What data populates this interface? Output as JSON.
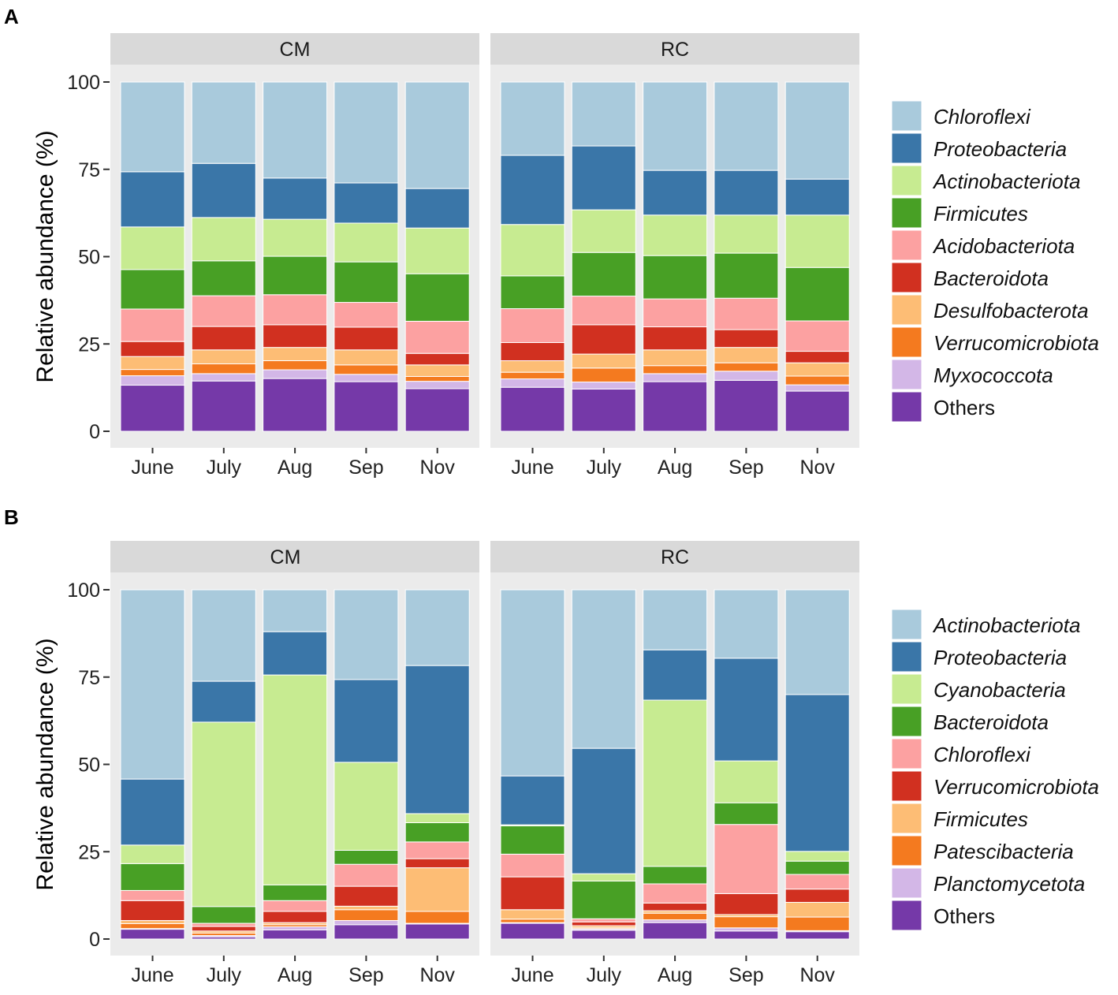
{
  "chart_data": [
    {
      "panel_label": "A",
      "type": "bar",
      "stacked": true,
      "ylabel": "Relative abundance (%)",
      "ylim": [
        0,
        100
      ],
      "yticks": [
        0,
        25,
        50,
        75,
        100
      ],
      "categories": [
        "June",
        "July",
        "Aug",
        "Sep",
        "Nov"
      ],
      "facets": [
        "CM",
        "RC"
      ],
      "legend_position": "right",
      "series": [
        {
          "name": "Chloroflexi",
          "color": "#a9cadc",
          "values": {
            "CM": [
              25.7,
              23.3,
              27.5,
              28.9,
              30.5
            ],
            "RC": [
              21.0,
              18.3,
              25.3,
              25.3,
              27.8
            ]
          }
        },
        {
          "name": "Proteobacteria",
          "color": "#3a76a8",
          "values": {
            "CM": [
              15.8,
              15.5,
              11.8,
              11.5,
              11.3
            ],
            "RC": [
              19.8,
              18.3,
              12.8,
              12.8,
              10.3
            ]
          }
        },
        {
          "name": "Actinobacteriota",
          "color": "#c7eb91",
          "values": {
            "CM": [
              12.2,
              12.4,
              10.6,
              11.1,
              13.1
            ],
            "RC": [
              14.7,
              12.2,
              11.6,
              10.9,
              15.0
            ]
          }
        },
        {
          "name": "Firmicutes",
          "color": "#48a025",
          "values": {
            "CM": [
              11.3,
              10.0,
              11.0,
              11.6,
              13.6
            ],
            "RC": [
              9.4,
              12.5,
              12.4,
              12.9,
              15.3
            ]
          }
        },
        {
          "name": "Acidobacteriota",
          "color": "#fca1a1",
          "values": {
            "CM": [
              9.3,
              8.8,
              8.6,
              7.1,
              9.2
            ],
            "RC": [
              9.7,
              8.2,
              8.0,
              9.0,
              8.7
            ]
          }
        },
        {
          "name": "Bacteroidota",
          "color": "#d13020",
          "values": {
            "CM": [
              4.3,
              6.7,
              6.5,
              6.5,
              3.3
            ],
            "RC": [
              5.2,
              8.4,
              6.6,
              5.1,
              3.3
            ]
          }
        },
        {
          "name": "Desulfobacterota",
          "color": "#fdbd75",
          "values": {
            "CM": [
              3.7,
              4.0,
              3.8,
              4.3,
              3.3
            ],
            "RC": [
              3.3,
              4.0,
              4.5,
              4.4,
              3.8
            ]
          }
        },
        {
          "name": "Verrucomicrobiota",
          "color": "#f47a1f",
          "values": {
            "CM": [
              1.8,
              2.8,
              2.6,
              2.7,
              1.4
            ],
            "RC": [
              1.9,
              4.0,
              2.3,
              2.4,
              2.5
            ]
          }
        },
        {
          "name": "Myxococcota",
          "color": "#d3b7e7",
          "values": {
            "CM": [
              2.7,
              2.1,
              2.5,
              2.1,
              2.1
            ],
            "RC": [
              2.4,
              2.0,
              2.3,
              2.6,
              1.8
            ]
          }
        },
        {
          "name": "Others",
          "color": "#7539a8",
          "values": {
            "CM": [
              13.2,
              14.4,
              15.1,
              14.2,
              12.2
            ],
            "RC": [
              12.6,
              12.1,
              14.2,
              14.6,
              11.5
            ]
          }
        }
      ]
    },
    {
      "panel_label": "B",
      "type": "bar",
      "stacked": true,
      "ylabel": "Relative abundance (%)",
      "ylim": [
        0,
        100
      ],
      "yticks": [
        0,
        25,
        50,
        75,
        100
      ],
      "categories": [
        "June",
        "July",
        "Aug",
        "Sep",
        "Nov"
      ],
      "facets": [
        "CM",
        "RC"
      ],
      "legend_position": "right",
      "series": [
        {
          "name": "Actinobacteriota",
          "color": "#a9cadc",
          "values": {
            "CM": [
              54.2,
              26.2,
              12.0,
              25.7,
              21.7
            ],
            "RC": [
              53.3,
              45.4,
              17.2,
              19.6,
              30.0
            ]
          }
        },
        {
          "name": "Proteobacteria",
          "color": "#3a76a8",
          "values": {
            "CM": [
              18.9,
              11.7,
              12.4,
              23.7,
              42.4
            ],
            "RC": [
              14.0,
              35.9,
              14.4,
              29.4,
              44.9
            ]
          }
        },
        {
          "name": "Cyanobacteria",
          "color": "#c7eb91",
          "values": {
            "CM": [
              5.3,
              52.8,
              60.1,
              25.2,
              2.6
            ],
            "RC": [
              0.3,
              2.1,
              47.6,
              12.0,
              2.8
            ]
          }
        },
        {
          "name": "Bacteroidota",
          "color": "#48a025",
          "values": {
            "CM": [
              7.7,
              4.8,
              4.5,
              4.0,
              5.5
            ],
            "RC": [
              8.1,
              10.8,
              5.0,
              6.2,
              3.8
            ]
          }
        },
        {
          "name": "Chloroflexi",
          "color": "#fca1a1",
          "values": {
            "CM": [
              2.9,
              0.9,
              3.1,
              6.3,
              4.8
            ],
            "RC": [
              6.5,
              0.9,
              5.5,
              19.8,
              4.2
            ]
          }
        },
        {
          "name": "Verrucomicrobiota",
          "color": "#d13020",
          "values": {
            "CM": [
              5.7,
              1.3,
              3.2,
              5.7,
              2.6
            ],
            "RC": [
              9.4,
              1.1,
              2.2,
              6.0,
              3.8
            ]
          }
        },
        {
          "name": "Firmicutes",
          "color": "#fdbd75",
          "values": {
            "CM": [
              0.9,
              0.6,
              0.6,
              1.0,
              12.5
            ],
            "RC": [
              2.7,
              0.6,
              0.7,
              0.6,
              4.2
            ]
          }
        },
        {
          "name": "Patescibacteria",
          "color": "#f47a1f",
          "values": {
            "CM": [
              1.4,
              0.7,
              0.6,
              3.1,
              3.4
            ],
            "RC": [
              1.0,
              0.3,
              1.9,
              3.2,
              3.9
            ]
          }
        },
        {
          "name": "Planctomycetota",
          "color": "#d3b7e7",
          "values": {
            "CM": [
              0.2,
              0.4,
              0.9,
              1.2,
              0.2
            ],
            "RC": [
              0.2,
              0.4,
              0.8,
              0.9,
              0.3
            ]
          }
        },
        {
          "name": "Others",
          "color": "#7539a8",
          "values": {
            "CM": [
              2.8,
              0.6,
              2.6,
              4.1,
              4.3
            ],
            "RC": [
              4.5,
              2.5,
              4.7,
              2.3,
              2.1
            ]
          }
        }
      ]
    }
  ]
}
